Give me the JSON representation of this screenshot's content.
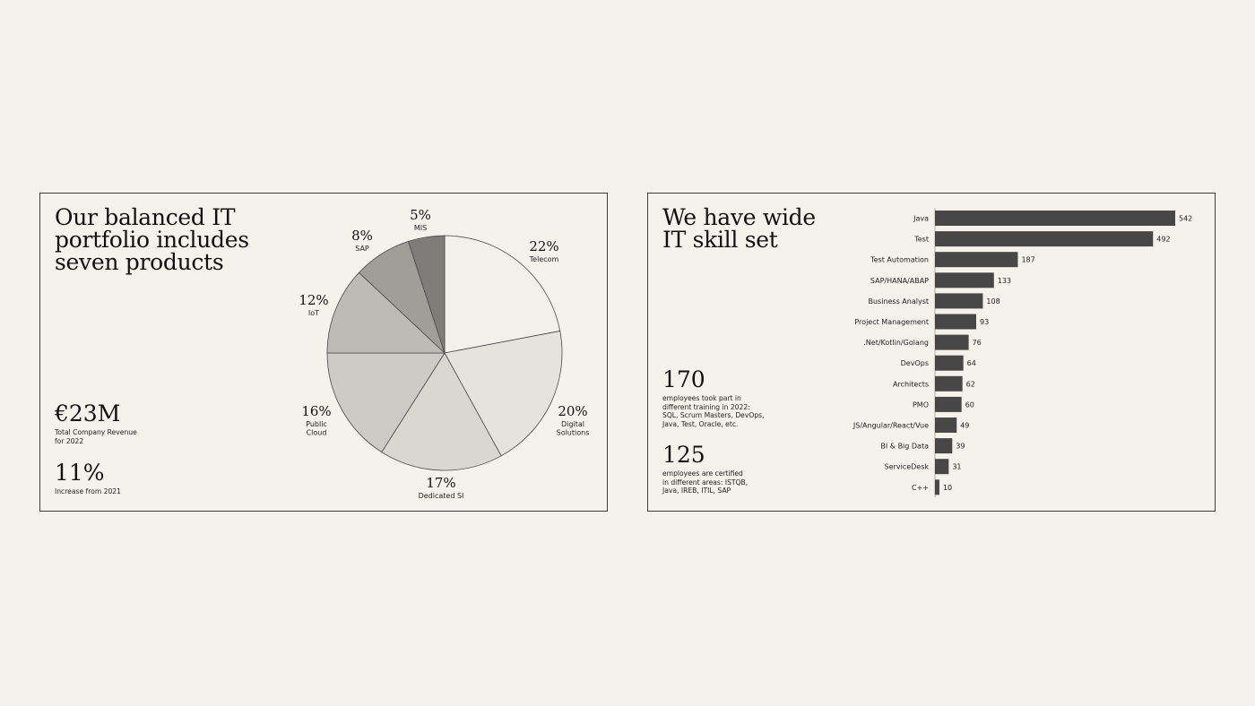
{
  "left_panel": {
    "title": "Our balanced IT\nportfolio includes\nseven products",
    "stats": [
      {
        "value": "€23M",
        "description": "Total Company Revenue\nfor 2022"
      },
      {
        "value": "11%",
        "description": "Increase from 2021"
      }
    ]
  },
  "right_panel": {
    "title": "We have wide\nIT skill set",
    "stats": [
      {
        "value": "170",
        "description": "employees took part in\ndifferent training in 2022:\nSQL, Scrum Masters, DevOps,\nJava, Test, Oracle, etc."
      },
      {
        "value": "125",
        "description": "employees are certified\nin different areas: ISTQB,\nJava, IREB, ITIL, SAP"
      }
    ]
  },
  "colors": {
    "background": "#f5f2ec",
    "border": "#3a3a3a",
    "bar": "#474747"
  },
  "chart_data": [
    {
      "type": "pie",
      "start": "top, clockwise",
      "slices": [
        {
          "label": "Telecom",
          "percent_label": "22%",
          "value": 22,
          "color": "#f3f0ea"
        },
        {
          "label": "Digital\nSolutions",
          "percent_label": "20%",
          "value": 20,
          "color": "#e6e3dd"
        },
        {
          "label": "Dedicated SI",
          "percent_label": "17%",
          "value": 17,
          "color": "#dad7d1"
        },
        {
          "label": "Public\nCloud",
          "percent_label": "16%",
          "value": 16,
          "color": "#cdcbc5"
        },
        {
          "label": "IoT",
          "percent_label": "12%",
          "value": 12,
          "color": "#bdbbb6"
        },
        {
          "label": "SAP",
          "percent_label": "8%",
          "value": 8,
          "color": "#a09e99"
        },
        {
          "label": "MIS",
          "percent_label": "5%",
          "value": 5,
          "color": "#7e7d79"
        }
      ]
    },
    {
      "type": "bar",
      "orientation": "horizontal",
      "categories": [
        "Java",
        "Test",
        "Test Automation",
        "SAP/HANA/ABAP",
        "Business Analyst",
        "Project Management",
        ".Net/Kotlin/Golang",
        "DevOps",
        "Architects",
        "PMO",
        "JS/Angular/React/Vue",
        "BI & Big Data",
        "ServiceDesk",
        "C++"
      ],
      "values": [
        542,
        492,
        187,
        133,
        108,
        93,
        76,
        64,
        62,
        60,
        49,
        39,
        31,
        10
      ],
      "xlim": [
        0,
        542
      ],
      "data_labels": true,
      "grid": false
    }
  ]
}
